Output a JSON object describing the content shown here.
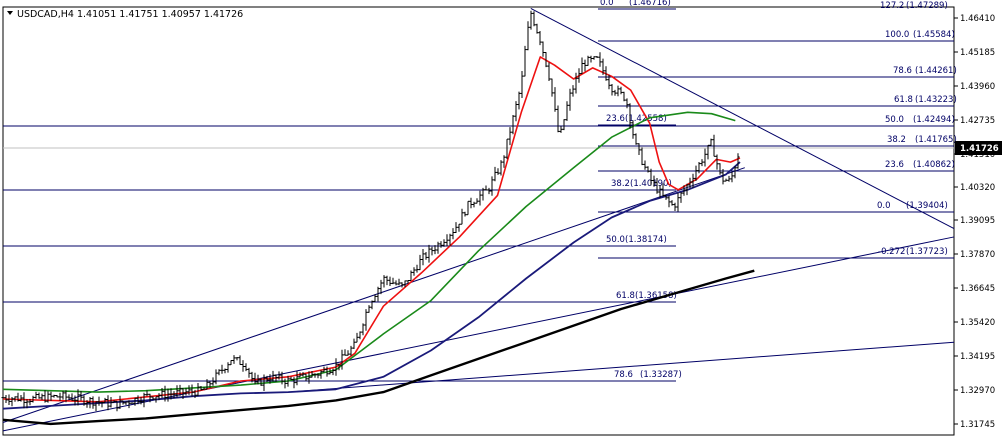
{
  "chart_data": {
    "type": "candlestick",
    "symbol_header": "USDCAD,H4  1.41051 1.41751 1.40957 1.41726",
    "current_price_label": "1.41726",
    "current_price": 1.41726,
    "ylim": [
      1.3135,
      1.468
    ],
    "y_ticks": [
      "1.46410",
      "1.45185",
      "1.43960",
      "1.42735",
      "1.41510",
      "1.40320",
      "1.39095",
      "1.37870",
      "1.36645",
      "1.35420",
      "1.34195",
      "1.32970",
      "1.31745"
    ],
    "fib_levels": [
      {
        "label": "0.0",
        "value": "(1.46716)"
      },
      {
        "label": "100.0",
        "value": "(1.45584)"
      },
      {
        "label": "78.6",
        "value": "(1.44261)"
      },
      {
        "label": "61.8",
        "value": "(1.43223)"
      },
      {
        "label": "50.0",
        "value": "(1.42494)"
      },
      {
        "label": "38.2",
        "value": "(1.41765)"
      },
      {
        "label": "23.6",
        "value": "(1.40862)"
      },
      {
        "label": "0.0",
        "value": "(1.39404)"
      },
      {
        "label": "-0.272",
        "value": "(1.37723)"
      },
      {
        "label": "23.6",
        "value": "(1.42558)"
      },
      {
        "label": "38.2",
        "value": "(1.40190)"
      },
      {
        "label": "50.0",
        "value": "(1.38174)"
      },
      {
        "label": "61.8",
        "value": "(1.36158)"
      },
      {
        "label": "78.6",
        "value": "(1.33287)"
      },
      {
        "label": "127.2",
        "value": "(1.47289)"
      }
    ],
    "price_path": [
      [
        0,
        1.327
      ],
      [
        0.03,
        1.3265
      ],
      [
        0.06,
        1.3275
      ],
      [
        0.09,
        1.326
      ],
      [
        0.12,
        1.3245
      ],
      [
        0.15,
        1.3275
      ],
      [
        0.18,
        1.3285
      ],
      [
        0.21,
        1.3295
      ],
      [
        0.225,
        1.335
      ],
      [
        0.24,
        1.341
      ],
      [
        0.255,
        1.339
      ],
      [
        0.265,
        1.3315
      ],
      [
        0.28,
        1.3345
      ],
      [
        0.3,
        1.333
      ],
      [
        0.33,
        1.3355
      ],
      [
        0.35,
        1.3385
      ],
      [
        0.37,
        1.346
      ],
      [
        0.385,
        1.361
      ],
      [
        0.4,
        1.37
      ],
      [
        0.42,
        1.367
      ],
      [
        0.44,
        1.377
      ],
      [
        0.46,
        1.383
      ],
      [
        0.475,
        1.388
      ],
      [
        0.49,
        1.397
      ],
      [
        0.51,
        1.402
      ],
      [
        0.525,
        1.412
      ],
      [
        0.535,
        1.426
      ],
      [
        0.545,
        1.44
      ],
      [
        0.55,
        1.4555
      ],
      [
        0.555,
        1.466
      ],
      [
        0.565,
        1.456
      ],
      [
        0.575,
        1.442
      ],
      [
        0.585,
        1.42
      ],
      [
        0.595,
        1.435
      ],
      [
        0.61,
        1.448
      ],
      [
        0.625,
        1.449
      ],
      [
        0.64,
        1.439
      ],
      [
        0.655,
        1.435
      ],
      [
        0.665,
        1.418
      ],
      [
        0.68,
        1.406
      ],
      [
        0.695,
        1.399
      ],
      [
        0.705,
        1.396
      ],
      [
        0.72,
        1.404
      ],
      [
        0.735,
        1.413
      ],
      [
        0.745,
        1.419
      ],
      [
        0.755,
        1.406
      ],
      [
        0.765,
        1.405
      ],
      [
        0.775,
        1.4172
      ]
    ],
    "series": [
      {
        "name": "red",
        "color": "#ee1111",
        "values": [
          [
            0,
            1.3265
          ],
          [
            0.1,
            1.3255
          ],
          [
            0.2,
            1.329
          ],
          [
            0.25,
            1.333
          ],
          [
            0.3,
            1.3345
          ],
          [
            0.35,
            1.338
          ],
          [
            0.37,
            1.343
          ],
          [
            0.4,
            1.36
          ],
          [
            0.44,
            1.372
          ],
          [
            0.48,
            1.385
          ],
          [
            0.52,
            1.4
          ],
          [
            0.545,
            1.43
          ],
          [
            0.565,
            1.45
          ],
          [
            0.58,
            1.447
          ],
          [
            0.6,
            1.442
          ],
          [
            0.62,
            1.446
          ],
          [
            0.64,
            1.443
          ],
          [
            0.66,
            1.438
          ],
          [
            0.68,
            1.426
          ],
          [
            0.69,
            1.412
          ],
          [
            0.7,
            1.404
          ],
          [
            0.71,
            1.402
          ],
          [
            0.73,
            1.406
          ],
          [
            0.75,
            1.413
          ],
          [
            0.765,
            1.412
          ],
          [
            0.775,
            1.4135
          ]
        ]
      },
      {
        "name": "green",
        "color": "#1a8a1a",
        "values": [
          [
            0,
            1.33
          ],
          [
            0.05,
            1.3295
          ],
          [
            0.1,
            1.329
          ],
          [
            0.15,
            1.3295
          ],
          [
            0.2,
            1.3305
          ],
          [
            0.25,
            1.3315
          ],
          [
            0.3,
            1.333
          ],
          [
            0.35,
            1.337
          ],
          [
            0.4,
            1.35
          ],
          [
            0.45,
            1.362
          ],
          [
            0.5,
            1.38
          ],
          [
            0.55,
            1.396
          ],
          [
            0.6,
            1.41
          ],
          [
            0.64,
            1.421
          ],
          [
            0.68,
            1.428
          ],
          [
            0.72,
            1.43
          ],
          [
            0.745,
            1.4295
          ],
          [
            0.77,
            1.427
          ]
        ]
      },
      {
        "name": "blue",
        "color": "#1a1a7a",
        "values": [
          [
            0,
            1.323
          ],
          [
            0.05,
            1.324
          ],
          [
            0.1,
            1.325
          ],
          [
            0.15,
            1.326
          ],
          [
            0.2,
            1.3275
          ],
          [
            0.25,
            1.3285
          ],
          [
            0.3,
            1.329
          ],
          [
            0.35,
            1.33
          ],
          [
            0.4,
            1.3345
          ],
          [
            0.45,
            1.344
          ],
          [
            0.5,
            1.356
          ],
          [
            0.55,
            1.37
          ],
          [
            0.6,
            1.383
          ],
          [
            0.64,
            1.392
          ],
          [
            0.68,
            1.398
          ],
          [
            0.72,
            1.402
          ],
          [
            0.76,
            1.4075
          ],
          [
            0.775,
            1.412
          ]
        ]
      },
      {
        "name": "black",
        "color": "#000000",
        "values": [
          [
            0,
            1.319
          ],
          [
            0.05,
            1.3175
          ],
          [
            0.1,
            1.3185
          ],
          [
            0.15,
            1.3195
          ],
          [
            0.2,
            1.321
          ],
          [
            0.25,
            1.3225
          ],
          [
            0.3,
            1.324
          ],
          [
            0.35,
            1.326
          ],
          [
            0.4,
            1.329
          ],
          [
            0.45,
            1.335
          ],
          [
            0.5,
            1.341
          ],
          [
            0.55,
            1.347
          ],
          [
            0.6,
            1.353
          ],
          [
            0.65,
            1.359
          ],
          [
            0.7,
            1.364
          ],
          [
            0.76,
            1.37
          ],
          [
            0.79,
            1.3728
          ]
        ]
      }
    ],
    "trend_lines": [
      {
        "color": "#000066",
        "points": [
          [
            0.555,
            1.4675
          ],
          [
            1.0,
            1.388
          ]
        ]
      },
      {
        "color": "#000066",
        "points": [
          [
            0.0,
            1.315
          ],
          [
            1.0,
            1.385
          ]
        ]
      },
      {
        "color": "#000066",
        "points": [
          [
            0.3,
            1.329
          ],
          [
            1.0,
            1.347
          ]
        ]
      },
      {
        "color": "#000066",
        "points": [
          [
            0.0,
            1.318
          ],
          [
            0.78,
            1.41
          ]
        ]
      }
    ],
    "grid": false,
    "current_price_line": true
  }
}
